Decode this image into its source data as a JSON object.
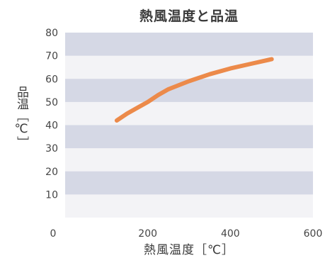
{
  "chart_data": {
    "type": "line",
    "title": "熱風温度と品温",
    "xlabel": "熱風温度［℃］",
    "ylabel": "品温［℃］",
    "x_ticks": [
      "0",
      "200",
      "400",
      "600"
    ],
    "y_ticks": [
      "10",
      "20",
      "30",
      "40",
      "50",
      "60",
      "70",
      "80"
    ],
    "xlim": [
      0,
      600
    ],
    "ylim": [
      0,
      80
    ],
    "grid": "horizontal bands",
    "band_color": "#d5d8e5",
    "line_color": "#ec8a4a",
    "series": [
      {
        "x": [
          125,
          150,
          175,
          200,
          225,
          250,
          300,
          350,
          400,
          450,
          500
        ],
        "y": [
          42,
          45,
          47.5,
          50,
          53,
          55.5,
          59,
          62,
          64.5,
          66.5,
          68.5
        ]
      }
    ]
  }
}
